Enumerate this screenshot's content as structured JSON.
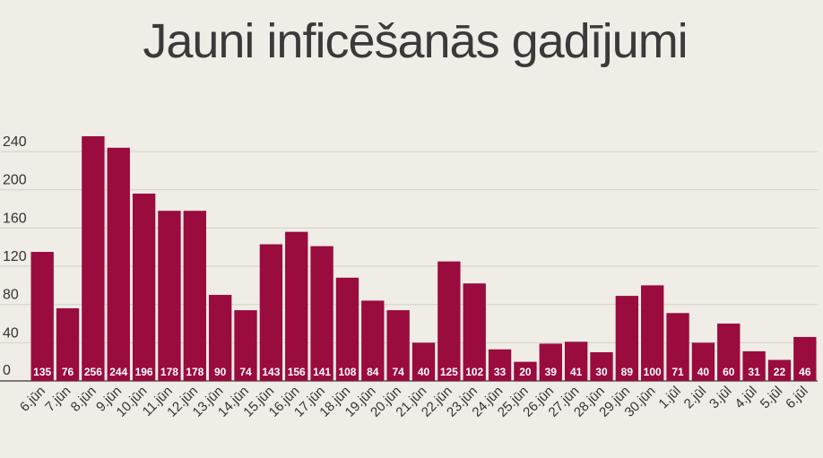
{
  "chart_data": {
    "type": "bar",
    "title": "Jauni inficēšanās gadījumi",
    "xlabel": "",
    "ylabel": "",
    "ylim": [
      0,
      264
    ],
    "yticks": [
      0,
      40,
      80,
      120,
      160,
      200,
      240
    ],
    "grid": true,
    "legend": "none",
    "bar_color": "#9a0b3e",
    "categories": [
      "6.jūn",
      "7.jūn",
      "8.jūn",
      "9.jūn",
      "10.jūn",
      "11.jūn",
      "12.jūn",
      "13.jūn",
      "14.jūn",
      "15.jūn",
      "16.jūn",
      "17.jūn",
      "18.jūn",
      "19.jūn",
      "20.jūn",
      "21.jūn",
      "22.jūn",
      "23.jūn",
      "24.jūn",
      "25.jūn",
      "26.jūn",
      "27.jūn",
      "28.jūn",
      "29.jūn",
      "30.jūn",
      "1.jūl",
      "2.jūl",
      "3.jūl",
      "4.jūl",
      "5.jūl",
      "6.jūl"
    ],
    "values": [
      135,
      76,
      256,
      244,
      196,
      178,
      178,
      90,
      74,
      143,
      156,
      141,
      108,
      84,
      74,
      40,
      125,
      102,
      33,
      20,
      39,
      41,
      30,
      89,
      100,
      71,
      40,
      60,
      31,
      22,
      46
    ]
  }
}
